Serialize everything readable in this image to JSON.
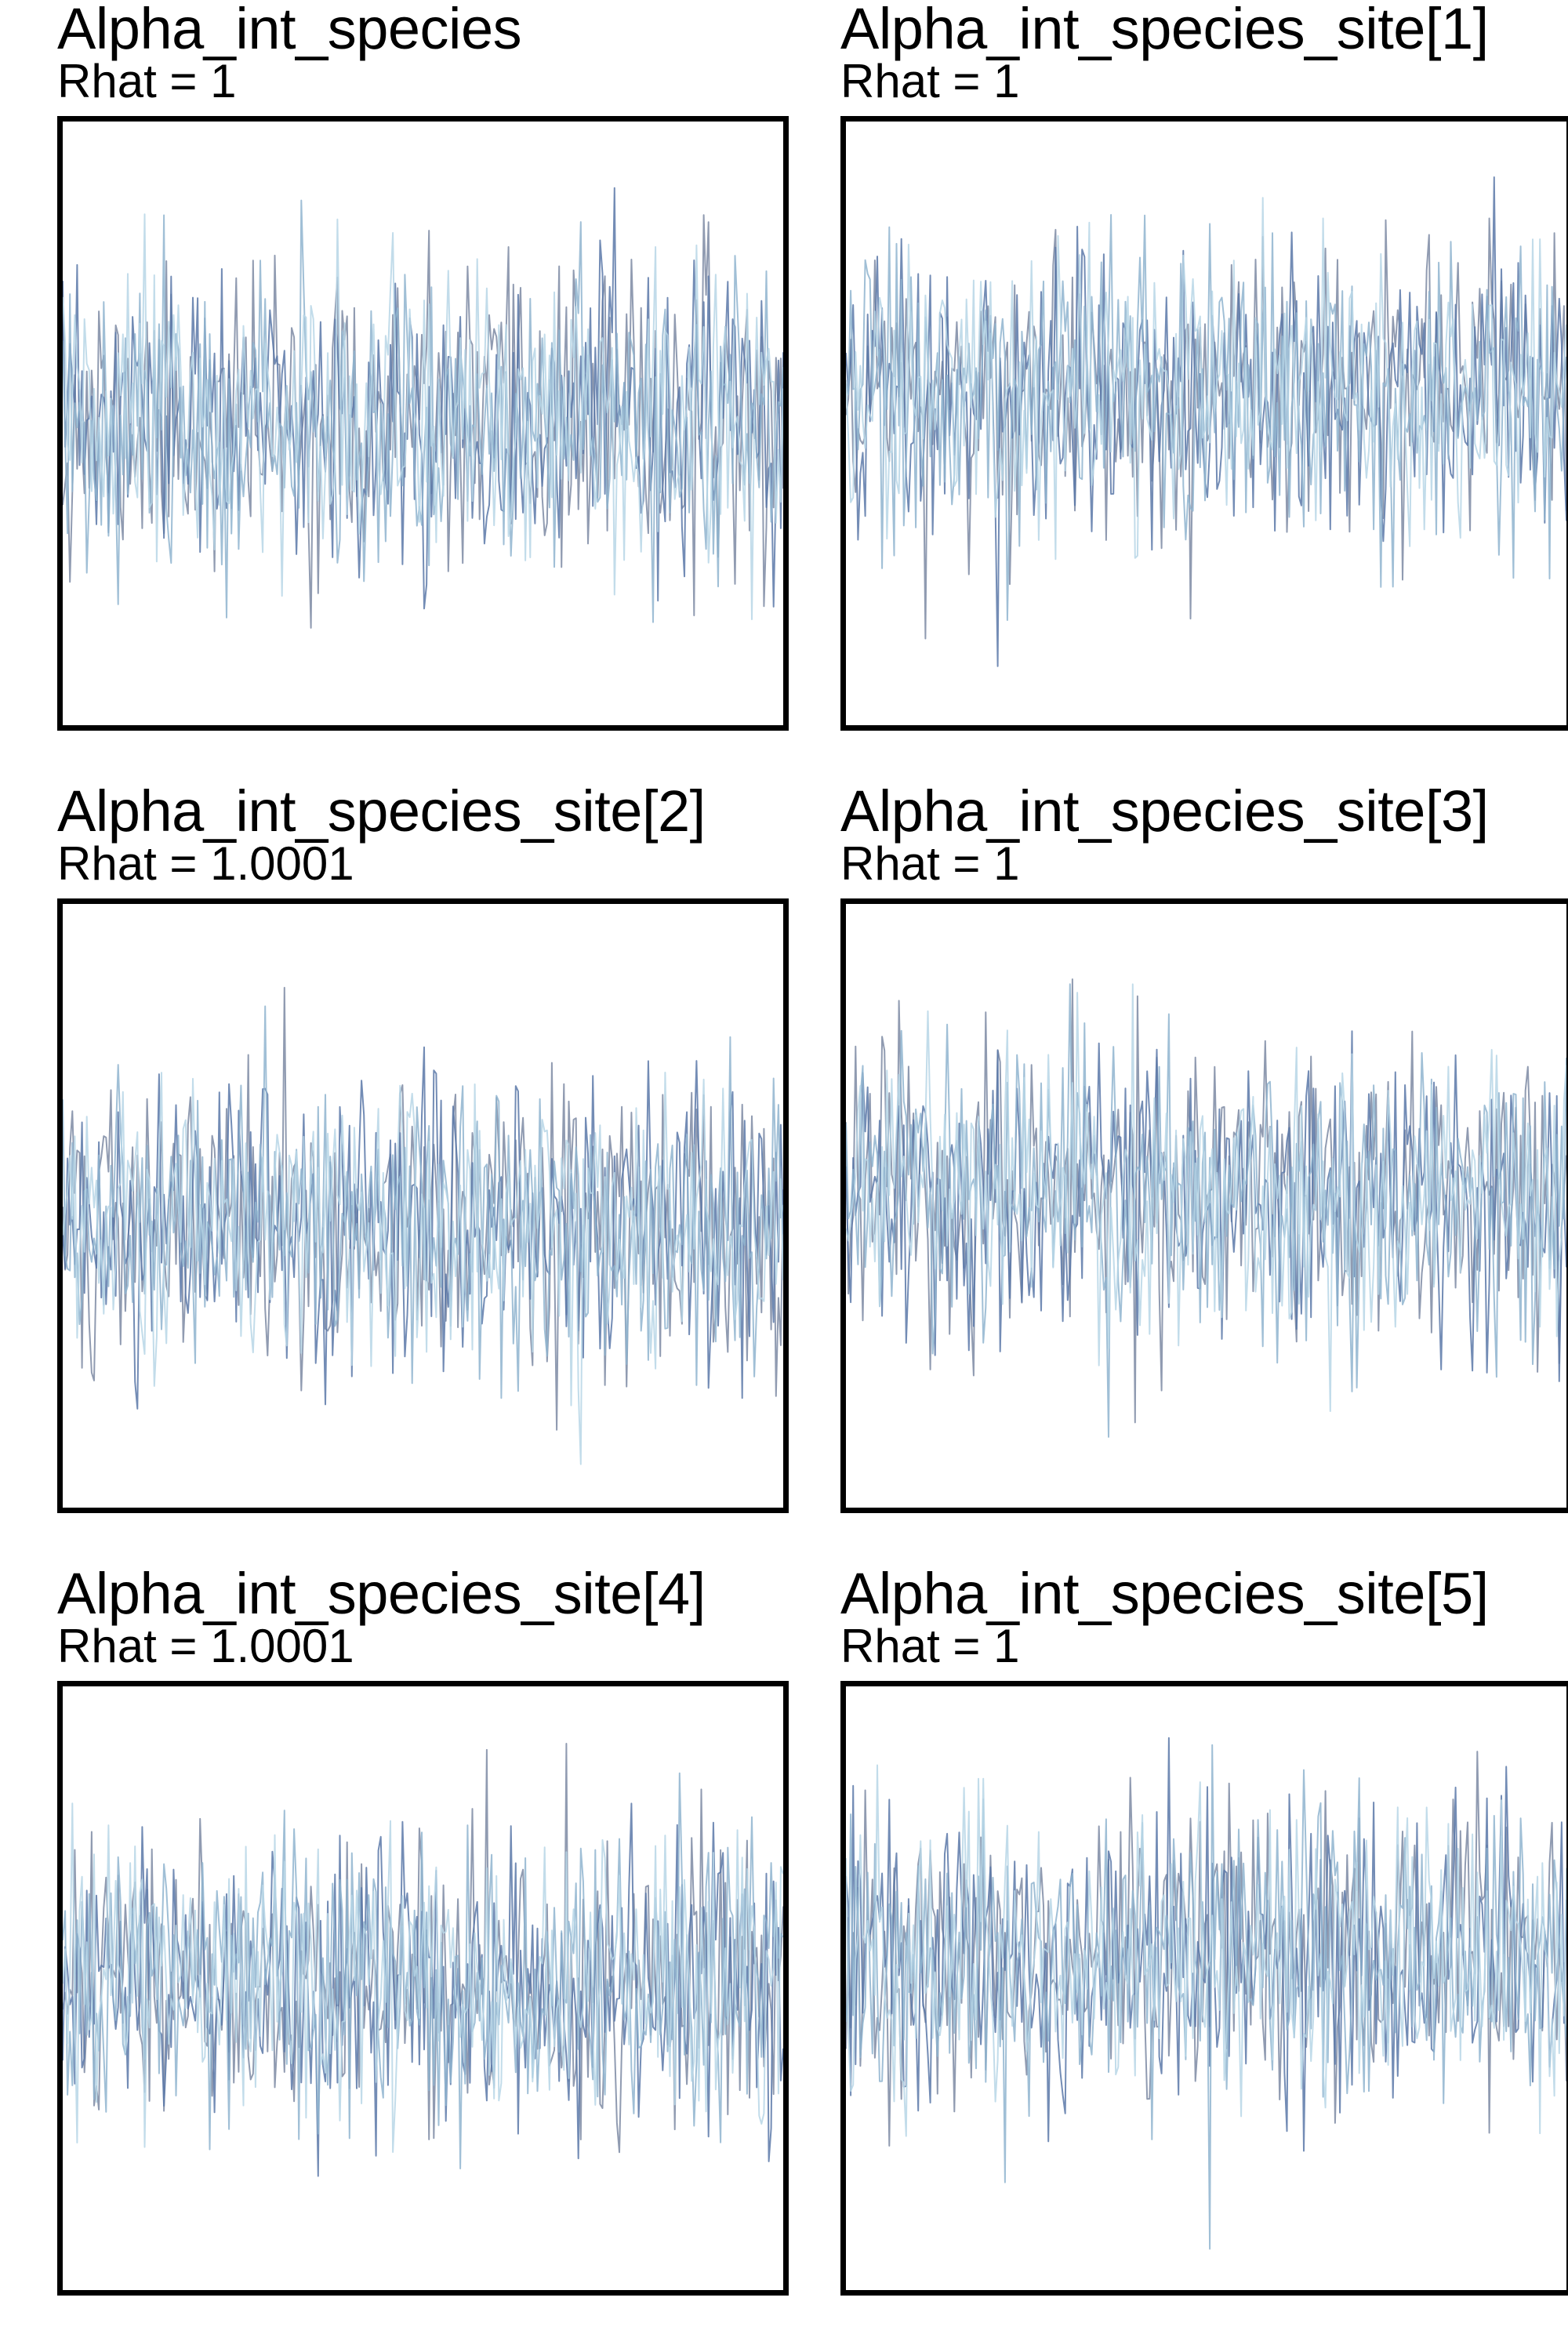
{
  "chart_data": [
    {
      "type": "line",
      "title": "Alpha_int_species",
      "subtitle": "Rhat = 1",
      "series": [
        {
          "color": "#7c89a3",
          "seed": 11
        },
        {
          "color": "#5b78a8",
          "seed": 23
        },
        {
          "color": "#8fb4cf",
          "seed": 37
        },
        {
          "color": "#b7d6e6",
          "seed": 51
        }
      ],
      "mean": 0.0,
      "sd": 1.0,
      "ylim": [
        -4.2,
        4.2
      ],
      "n_iter": 300,
      "grid": false
    },
    {
      "type": "line",
      "title": "Alpha_int_species_site[1]",
      "subtitle": "Rhat = 1",
      "series": [
        {
          "color": "#7c89a3",
          "seed": 61
        },
        {
          "color": "#5b78a8",
          "seed": 73
        },
        {
          "color": "#8fb4cf",
          "seed": 89
        },
        {
          "color": "#b7d6e6",
          "seed": 97
        }
      ],
      "mean": 0.0,
      "sd": 1.0,
      "ylim": [
        -4.6,
        3.8
      ],
      "n_iter": 300,
      "grid": false
    },
    {
      "type": "line",
      "title": "Alpha_int_species_site[2]",
      "subtitle": "Rhat = 1.0001",
      "series": [
        {
          "color": "#7c89a3",
          "seed": 101
        },
        {
          "color": "#5b78a8",
          "seed": 113
        },
        {
          "color": "#8fb4cf",
          "seed": 127
        },
        {
          "color": "#b7d6e6",
          "seed": 139
        }
      ],
      "mean": 0.0,
      "sd": 1.0,
      "ylim": [
        -4.0,
        4.4
      ],
      "n_iter": 300,
      "grid": false
    },
    {
      "type": "line",
      "title": "Alpha_int_species_site[3]",
      "subtitle": "Rhat = 1",
      "series": [
        {
          "color": "#7c89a3",
          "seed": 151
        },
        {
          "color": "#5b78a8",
          "seed": 163
        },
        {
          "color": "#8fb4cf",
          "seed": 179
        },
        {
          "color": "#b7d6e6",
          "seed": 191
        }
      ],
      "mean": 0.0,
      "sd": 1.0,
      "ylim": [
        -4.4,
        4.0
      ],
      "n_iter": 300,
      "grid": false
    },
    {
      "type": "line",
      "title": "Alpha_int_species_site[4]",
      "subtitle": "Rhat = 1.0001",
      "series": [
        {
          "color": "#7c89a3",
          "seed": 199
        },
        {
          "color": "#5b78a8",
          "seed": 211
        },
        {
          "color": "#8fb4cf",
          "seed": 223
        },
        {
          "color": "#b7d6e6",
          "seed": 233
        }
      ],
      "mean": 0.0,
      "sd": 1.0,
      "ylim": [
        -4.4,
        4.2
      ],
      "n_iter": 300,
      "grid": false
    },
    {
      "type": "line",
      "title": "Alpha_int_species_site[5]",
      "subtitle": "Rhat = 1",
      "series": [
        {
          "color": "#7c89a3",
          "seed": 241
        },
        {
          "color": "#5b78a8",
          "seed": 251
        },
        {
          "color": "#8fb4cf",
          "seed": 263
        },
        {
          "color": "#b7d6e6",
          "seed": 271
        }
      ],
      "mean": 0.0,
      "sd": 1.0,
      "ylim": [
        -4.6,
        3.8
      ],
      "n_iter": 300,
      "grid": false
    }
  ]
}
